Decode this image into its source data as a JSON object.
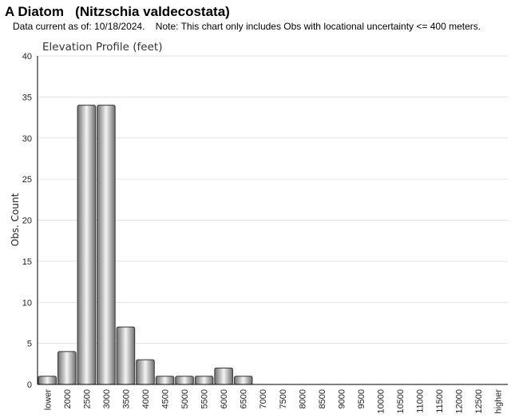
{
  "header": {
    "title": "A Diatom   (Nitzschia valdecostata)",
    "subtitle": "Data current as of: 10/18/2024.    Note: This chart only includes Obs with locational uncertainty <= 400 meters."
  },
  "colors": {
    "bar_dark": "#6f6f6f",
    "bar_light": "#f4f4f4",
    "bar_stroke": "#333333",
    "grid": "#e3e3e3",
    "axis": "#000000"
  },
  "chart_data": {
    "type": "bar",
    "title": "Elevation Profile (feet)",
    "xlabel": "",
    "ylabel": "Obs. Count",
    "ylim": [
      0,
      40
    ],
    "yticks": [
      0,
      5,
      10,
      15,
      20,
      25,
      30,
      35,
      40
    ],
    "grid": true,
    "categories": [
      "lower",
      "2000",
      "2500",
      "3000",
      "3500",
      "4000",
      "4500",
      "5000",
      "5500",
      "6000",
      "6500",
      "7000",
      "7500",
      "8000",
      "8500",
      "9000",
      "9500",
      "10000",
      "10500",
      "11000",
      "11500",
      "12000",
      "12500",
      "higher"
    ],
    "values": [
      1,
      4,
      34,
      34,
      7,
      3,
      1,
      1,
      1,
      2,
      1,
      0,
      0,
      0,
      0,
      0,
      0,
      0,
      0,
      0,
      0,
      0,
      0,
      0
    ]
  }
}
